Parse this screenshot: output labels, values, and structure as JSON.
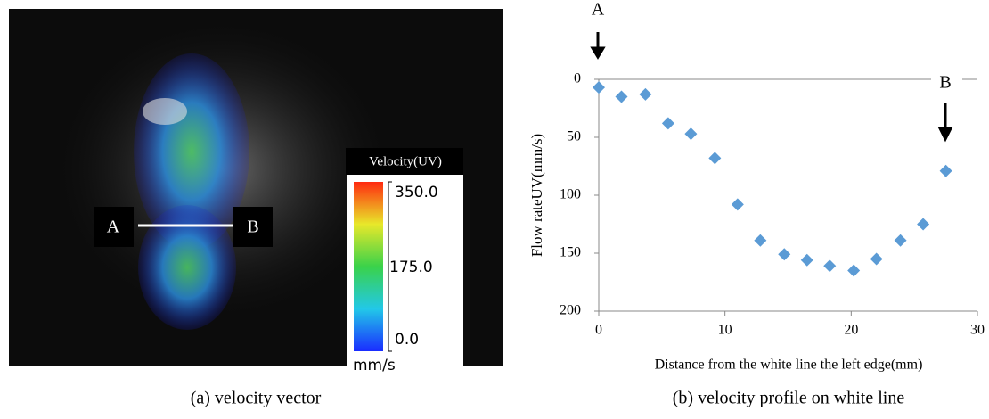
{
  "image_panel": {
    "caption": "(a) velocity vector",
    "label_a": "A",
    "label_b": "B",
    "colorbar": {
      "title": "Velocity(UV)",
      "ticks": [
        "350.0",
        "175.0",
        "0.0"
      ],
      "unit": "mm/s"
    }
  },
  "chart_data": {
    "type": "scatter",
    "caption": "(b) velocity profile on white line",
    "x_label": "Distance from the white line the left edge(mm)",
    "y_label": "Flow rateUV(mm/s)",
    "annotations": [
      "A",
      "B"
    ],
    "x": [
      0,
      1.8,
      3.7,
      5.5,
      7.3,
      9.2,
      11,
      12.8,
      14.7,
      16.5,
      18.3,
      20.2,
      22,
      23.9,
      25.7,
      27.5
    ],
    "values": [
      7,
      15,
      13,
      38,
      47,
      68,
      108,
      139,
      151,
      156,
      161,
      165,
      155,
      139,
      125,
      79
    ],
    "color": "#5b9bd5",
    "xlim": [
      0,
      30
    ],
    "xticks": [
      0,
      10,
      20,
      30
    ],
    "ylim": [
      0,
      200
    ],
    "yticks": [
      0,
      50,
      100,
      150,
      200
    ],
    "y_reversed": true
  }
}
